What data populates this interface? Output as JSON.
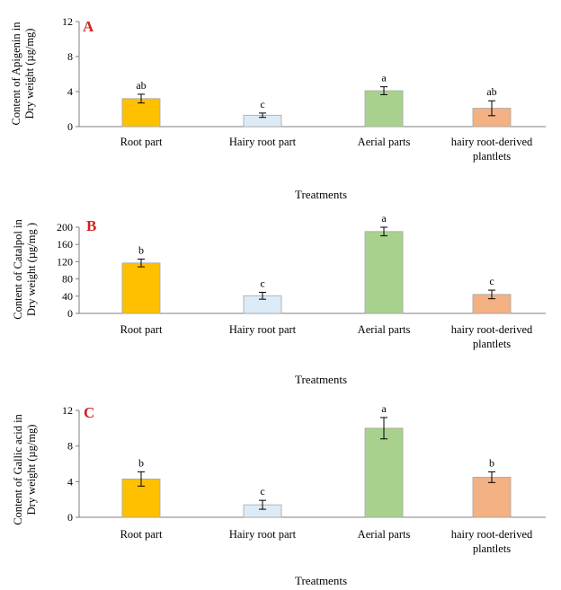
{
  "chart_data": [
    {
      "type": "bar",
      "panel_label": "A",
      "categories": [
        "Root part",
        "Hairy root part",
        "Aerial parts",
        [
          "hairy root-derived",
          "plantlets"
        ]
      ],
      "values": [
        3.2,
        1.3,
        4.1,
        2.1
      ],
      "errors": [
        0.5,
        0.25,
        0.45,
        0.85
      ],
      "significance": [
        "ab",
        "c",
        "a",
        "ab"
      ],
      "colors": [
        "#FFC000",
        "#DDEBF7",
        "#A9D18E",
        "#F4B183"
      ],
      "ylabel": [
        "Content of Apigenin in",
        "Dry weight (µg/mg)"
      ],
      "xlabel": "Treatments",
      "ylim": [
        0,
        12
      ],
      "yticks": [
        0,
        4,
        8,
        12
      ]
    },
    {
      "type": "bar",
      "panel_label": "B",
      "categories": [
        "Root part",
        "Hairy root part",
        "Aerial parts",
        [
          "hairy root-derived",
          "plantlets"
        ]
      ],
      "values": [
        117,
        41,
        190,
        44
      ],
      "errors": [
        9,
        8,
        10,
        10
      ],
      "significance": [
        "b",
        "c",
        "a",
        "c"
      ],
      "colors": [
        "#FFC000",
        "#DDEBF7",
        "#A9D18E",
        "#F4B183"
      ],
      "ylabel": [
        "Content of Catalpol in",
        "Dry weight (µg/mg )"
      ],
      "xlabel": "Treatments",
      "ylim": [
        0,
        200
      ],
      "yticks": [
        0,
        40,
        80,
        120,
        160,
        200
      ]
    },
    {
      "type": "bar",
      "panel_label": "C",
      "categories": [
        "Root part",
        "Hairy root part",
        "Aerial parts",
        [
          "hairy root-derived",
          "plantlets"
        ]
      ],
      "values": [
        4.3,
        1.4,
        10.0,
        4.5
      ],
      "errors": [
        0.8,
        0.5,
        1.2,
        0.6
      ],
      "significance": [
        "b",
        "c",
        "a",
        "b"
      ],
      "colors": [
        "#FFC000",
        "#DDEBF7",
        "#A9D18E",
        "#F4B183"
      ],
      "ylabel": [
        "Content of Gallic acid in",
        "Dry weight (µg/mg)"
      ],
      "xlabel": "Treatments",
      "ylim": [
        0,
        12
      ],
      "yticks": [
        0,
        4,
        8,
        12
      ]
    }
  ]
}
